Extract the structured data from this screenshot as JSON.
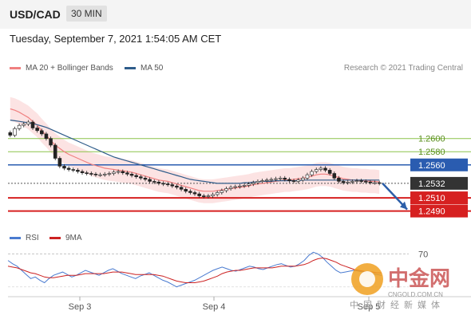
{
  "header": {
    "symbol": "USD/CAD",
    "timeframe": "30 MIN"
  },
  "timestamp": "Tuesday, September 7, 2021 1:54:05 AM CET",
  "legend": {
    "bb_label": "MA 20 + Bollinger Bands",
    "ma50_label": "MA 50",
    "credit": "Research © 2021 Trading Central"
  },
  "rsi_legend": {
    "rsi_label": "RSI",
    "ma_label": "9MA"
  },
  "watermark": {
    "brand": "中金网",
    "domain": "CNGOLD.COM.CN",
    "tagline": "中国财经新媒体"
  },
  "colors": {
    "bb": "#f08080",
    "ma50": "#2e5c8a",
    "rsi": "#4a7bd0",
    "rsi_ma": "#cc2222",
    "support": "#d62020",
    "resistance_major": "#2a5cb0",
    "resistance_minor": "#8bc34a"
  },
  "chart_data": [
    {
      "type": "candlestick",
      "title": "USD/CAD",
      "x_ticks": [
        "Sep 3",
        "Sep 4",
        "Sep 5"
      ],
      "ylim": [
        1.2475,
        1.2665
      ],
      "levels": [
        {
          "value": 1.26,
          "label": "1.2600",
          "kind": "resistance_minor"
        },
        {
          "value": 1.258,
          "label": "1.2580",
          "kind": "resistance_minor"
        },
        {
          "value": 1.256,
          "label": "1.2560",
          "kind": "resistance_major"
        },
        {
          "value": 1.2532,
          "label": "1.2532",
          "kind": "current"
        },
        {
          "value": 1.251,
          "label": "1.2510",
          "kind": "support"
        },
        {
          "value": 1.249,
          "label": "1.2490",
          "kind": "support"
        }
      ],
      "close": [
        1.2605,
        1.2615,
        1.262,
        1.2622,
        1.2625,
        1.2616,
        1.2612,
        1.2607,
        1.26,
        1.259,
        1.257,
        1.2558,
        1.2555,
        1.2553,
        1.2552,
        1.255,
        1.2548,
        1.2547,
        1.2546,
        1.2545,
        1.2545,
        1.2546,
        1.2547,
        1.2549,
        1.255,
        1.2548,
        1.2546,
        1.2544,
        1.2542,
        1.254,
        1.2538,
        1.2535,
        1.2534,
        1.2532,
        1.2531,
        1.253,
        1.2528,
        1.2526,
        1.2523,
        1.252,
        1.2518,
        1.2516,
        1.2513,
        1.2512,
        1.2513,
        1.2515,
        1.2518,
        1.2521,
        1.2524,
        1.2526,
        1.2527,
        1.2528,
        1.2529,
        1.2531,
        1.2533,
        1.2535,
        1.2536,
        1.2537,
        1.2538,
        1.2539,
        1.254,
        1.2538,
        1.2536,
        1.2535,
        1.2537,
        1.254,
        1.2545,
        1.255,
        1.2553,
        1.2555,
        1.2552,
        1.2547,
        1.254,
        1.2535,
        1.2533,
        1.2534,
        1.2535,
        1.2536,
        1.2535,
        1.2534,
        1.2533,
        1.2533,
        1.2532
      ],
      "ma20": [
        1.2645,
        1.2643,
        1.264,
        1.2636,
        1.2632,
        1.2626,
        1.262,
        1.2612,
        1.2605,
        1.2597,
        1.259,
        1.2585,
        1.258,
        1.2576,
        1.2573,
        1.257,
        1.2567,
        1.2564,
        1.2561,
        1.2559,
        1.2557,
        1.2555,
        1.2554,
        1.2553,
        1.2552,
        1.2551,
        1.255,
        1.2549,
        1.2547,
        1.2545,
        1.2543,
        1.2541,
        1.2539,
        1.2537,
        1.2536,
        1.2535,
        1.2533,
        1.2531,
        1.2529,
        1.2527,
        1.2525,
        1.2523,
        1.2521,
        1.252,
        1.252,
        1.252,
        1.2521,
        1.2522,
        1.2523,
        1.2524,
        1.2525,
        1.2526,
        1.2527,
        1.2528,
        1.253,
        1.2531,
        1.2532,
        1.2533,
        1.2534,
        1.2535,
        1.2536,
        1.2537,
        1.2537,
        1.2538,
        1.2539,
        1.254,
        1.2541,
        1.2543,
        1.2545,
        1.2546,
        1.2546,
        1.2545,
        1.2543,
        1.2541,
        1.2539,
        1.2538,
        1.2537,
        1.2537,
        1.2536,
        1.2536,
        1.2535,
        1.2535,
        1.2534
      ],
      "ma50": [
        1.2628,
        1.2627,
        1.2626,
        1.2625,
        1.2624,
        1.2623,
        1.2621,
        1.2619,
        1.2617,
        1.2614,
        1.2611,
        1.2608,
        1.2605,
        1.2602,
        1.2599,
        1.2596,
        1.2593,
        1.259,
        1.2587,
        1.2584,
        1.2581,
        1.2578,
        1.2575,
        1.2572,
        1.257,
        1.2568,
        1.2566,
        1.2564,
        1.2562,
        1.256,
        1.2558,
        1.2556,
        1.2554,
        1.2552,
        1.255,
        1.2548,
        1.2546,
        1.2544,
        1.2542,
        1.254,
        1.2538,
        1.2537,
        1.2536,
        1.2535,
        1.2534,
        1.2533,
        1.2532,
        1.2532,
        1.2532,
        1.2532,
        1.2532,
        1.2532,
        1.2533,
        1.2533,
        1.2534,
        1.2534,
        1.2535,
        1.2535,
        1.2535,
        1.2536,
        1.2536,
        1.2536,
        1.2536,
        1.2536,
        1.2536,
        1.2537,
        1.2537,
        1.2537,
        1.2537,
        1.2537,
        1.2537,
        1.2537,
        1.2537,
        1.2537,
        1.2537,
        1.2537,
        1.2537,
        1.2537,
        1.2537,
        1.2537,
        1.2537,
        1.2537,
        1.2537
      ],
      "forecast": [
        1.2532,
        1.249
      ]
    },
    {
      "type": "line",
      "title": "RSI",
      "y_ticks": [
        70
      ],
      "ylim": [
        20,
        80
      ],
      "rsi": [
        62,
        58,
        55,
        50,
        45,
        40,
        42,
        38,
        35,
        40,
        44,
        46,
        48,
        45,
        42,
        44,
        47,
        50,
        48,
        46,
        44,
        47,
        50,
        52,
        49,
        46,
        44,
        42,
        40,
        43,
        45,
        47,
        44,
        41,
        38,
        36,
        33,
        30,
        32,
        34,
        36,
        38,
        41,
        44,
        47,
        50,
        52,
        54,
        52,
        50,
        49,
        51,
        53,
        55,
        54,
        52,
        51,
        53,
        55,
        57,
        58,
        56,
        54,
        55,
        58,
        62,
        68,
        72,
        70,
        66,
        60,
        55,
        50,
        47,
        48,
        49,
        50,
        49,
        48,
        47,
        46,
        45,
        44
      ],
      "rsi_ma": [
        55,
        54,
        53,
        51,
        49,
        47,
        46,
        44,
        42,
        41,
        41,
        42,
        43,
        44,
        44,
        44,
        45,
        46,
        46,
        46,
        46,
        46,
        47,
        48,
        48,
        48,
        47,
        46,
        45,
        45,
        45,
        45,
        45,
        44,
        43,
        41,
        39,
        37,
        36,
        35,
        35,
        35,
        36,
        37,
        39,
        41,
        43,
        46,
        48,
        49,
        50,
        50,
        51,
        52,
        53,
        53,
        53,
        53,
        53,
        54,
        55,
        55,
        55,
        55,
        56,
        57,
        59,
        62,
        64,
        65,
        64,
        62,
        60,
        57,
        55,
        53,
        51,
        50,
        49,
        48,
        48,
        47,
        47
      ]
    }
  ]
}
